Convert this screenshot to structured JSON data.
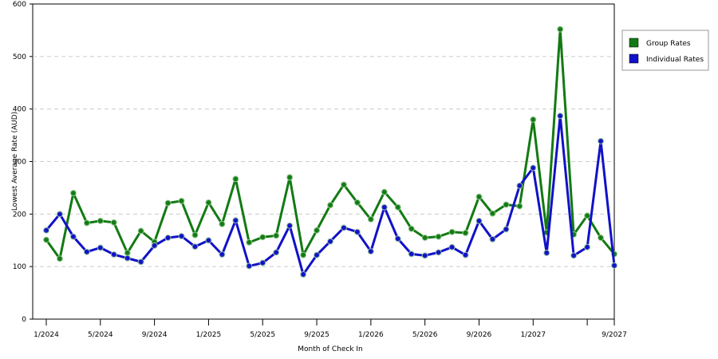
{
  "chart_data": {
    "type": "line",
    "x_label": "Month of Check In",
    "y_label": "Lowest Average Rate (AUD)",
    "categories": [
      "1/2024",
      null,
      null,
      null,
      "5/2024",
      null,
      null,
      null,
      "9/2024",
      null,
      null,
      null,
      "1/2025",
      null,
      null,
      null,
      "5/2025",
      null,
      null,
      null,
      "9/2025",
      null,
      null,
      null,
      "1/2026",
      null,
      null,
      null,
      "5/2026",
      null,
      null,
      null,
      "9/2026",
      null,
      null,
      null,
      "1/2027",
      null,
      null,
      null,
      null,
      null,
      "9/2027"
    ],
    "series": [
      {
        "name": "Group Rates",
        "color": "#137a13",
        "values": [
          151,
          115,
          240,
          183,
          187,
          184,
          126,
          168,
          147,
          221,
          225,
          160,
          222,
          181,
          267,
          146,
          156,
          159,
          270,
          122,
          169,
          217,
          256,
          222,
          190,
          242,
          213,
          172,
          155,
          157,
          166,
          164,
          233,
          201,
          218,
          215,
          380,
          165,
          552,
          161,
          197,
          155,
          124
        ]
      },
      {
        "name": "Individual Rates",
        "color": "#1111c8",
        "values": [
          169,
          200,
          157,
          128,
          136,
          123,
          116,
          109,
          140,
          155,
          158,
          138,
          150,
          123,
          188,
          101,
          107,
          127,
          178,
          85,
          122,
          148,
          174,
          166,
          129,
          213,
          153,
          124,
          121,
          127,
          137,
          122,
          187,
          152,
          171,
          254,
          288,
          126,
          387,
          121,
          137,
          339,
          102
        ]
      }
    ],
    "ylim": [
      0,
      600
    ],
    "yticks": [
      0,
      100,
      200,
      300,
      400,
      500,
      600
    ],
    "grid": true,
    "legend": "right"
  }
}
